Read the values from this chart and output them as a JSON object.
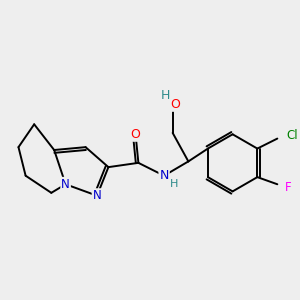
{
  "bg_color": "#eeeeee",
  "bond_color": "#000000",
  "atom_colors": {
    "O": "#ff0000",
    "N": "#0000cc",
    "Cl": "#008000",
    "F": "#ff00ff",
    "H": "#2e8b8b",
    "C": "#000000"
  },
  "figsize": [
    3.0,
    3.0
  ],
  "dpi": 100
}
